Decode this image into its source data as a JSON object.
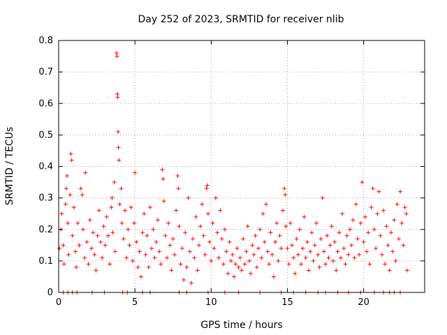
{
  "chart_data": {
    "type": "scatter",
    "title": "Day 252 of 2023, SRMTID for receiver nlib",
    "xlabel": "GPS time / hours",
    "ylabel": "SRMTID / TECUs",
    "xlim": [
      0,
      24
    ],
    "ylim": [
      0,
      0.8
    ],
    "x_ticks": [
      0,
      5,
      10,
      15,
      20
    ],
    "x_tick_labels": [
      "0",
      "5",
      "10",
      "15",
      "20"
    ],
    "y_ticks": [
      0,
      0.1,
      0.2,
      0.3,
      0.4,
      0.5,
      0.6,
      0.7,
      0.8
    ],
    "y_tick_labels": [
      "0",
      "0.1",
      "0.2",
      "0.3",
      "0.4",
      "0.5",
      "0.6",
      "0.7",
      "0.8"
    ],
    "grid": true,
    "marker": "+",
    "series": [
      {
        "name": "SRMTID",
        "color": "#ff0000",
        "points": [
          [
            0.05,
            0.14
          ],
          [
            0.15,
            0.2
          ],
          [
            0.2,
            0.25
          ],
          [
            0.3,
            0.15
          ],
          [
            0.35,
            0.09
          ],
          [
            0.45,
            0.28
          ],
          [
            0.5,
            0.33
          ],
          [
            0.55,
            0.37
          ],
          [
            0.6,
            0.22
          ],
          [
            0.65,
            0.12
          ],
          [
            0.75,
            0.31
          ],
          [
            0.8,
            0.44
          ],
          [
            0.85,
            0.42
          ],
          [
            0.9,
            0.18
          ],
          [
            1.0,
            0.27
          ],
          [
            1.1,
            0.13
          ],
          [
            1.15,
            0.08
          ],
          [
            1.25,
            0.22
          ],
          [
            1.35,
            0.15
          ],
          [
            1.45,
            0.33
          ],
          [
            1.55,
            0.31
          ],
          [
            1.6,
            0.2
          ],
          [
            1.7,
            0.11
          ],
          [
            1.75,
            0.38
          ],
          [
            1.85,
            0.16
          ],
          [
            1.95,
            0.09
          ],
          [
            2.05,
            0.23
          ],
          [
            2.15,
            0.14
          ],
          [
            2.25,
            0.19
          ],
          [
            2.35,
            0.12
          ],
          [
            2.45,
            0.07
          ],
          [
            2.55,
            0.18
          ],
          [
            2.65,
            0.26
          ],
          [
            2.75,
            0.16
          ],
          [
            2.85,
            0.11
          ],
          [
            2.95,
            0.21
          ],
          [
            3.05,
            0.15
          ],
          [
            3.15,
            0.24
          ],
          [
            3.25,
            0.18
          ],
          [
            3.35,
            0.09
          ],
          [
            3.45,
            0.27
          ],
          [
            3.5,
            0.3
          ],
          [
            3.55,
            0.19
          ],
          [
            3.65,
            0.35
          ],
          [
            3.7,
            0.13
          ],
          [
            3.8,
            0.76
          ],
          [
            3.83,
            0.75
          ],
          [
            3.85,
            0.63
          ],
          [
            3.87,
            0.62
          ],
          [
            3.9,
            0.51
          ],
          [
            3.92,
            0.46
          ],
          [
            3.95,
            0.42
          ],
          [
            4.0,
            0.28
          ],
          [
            4.1,
            0.33
          ],
          [
            4.15,
            0.22
          ],
          [
            4.25,
            0.17
          ],
          [
            4.35,
            0.26
          ],
          [
            4.45,
            0.11
          ],
          [
            4.55,
            0.2
          ],
          [
            4.65,
            0.15
          ],
          [
            4.75,
            0.27
          ],
          [
            4.85,
            0.1
          ],
          [
            4.95,
            0.22
          ],
          [
            5.0,
            0.38
          ],
          [
            5.1,
            0.16
          ],
          [
            5.2,
            0.08
          ],
          [
            5.3,
            0.13
          ],
          [
            5.4,
            0.05
          ],
          [
            5.5,
            0.19
          ],
          [
            5.6,
            0.25
          ],
          [
            5.7,
            0.12
          ],
          [
            5.8,
            0.18
          ],
          [
            5.9,
            0.08
          ],
          [
            6.0,
            0.27
          ],
          [
            6.1,
            0.14
          ],
          [
            6.2,
            0.2
          ],
          [
            6.3,
            0.11
          ],
          [
            6.4,
            0.16
          ],
          [
            6.5,
            0.23
          ],
          [
            6.6,
            0.13
          ],
          [
            6.7,
            0.09
          ],
          [
            6.8,
            0.39
          ],
          [
            6.85,
            0.36
          ],
          [
            6.9,
            0.29
          ],
          [
            7.0,
            0.18
          ],
          [
            7.1,
            0.11
          ],
          [
            7.2,
            0.22
          ],
          [
            7.3,
            0.15
          ],
          [
            7.4,
            0.07
          ],
          [
            7.5,
            0.17
          ],
          [
            7.6,
            0.12
          ],
          [
            7.7,
            0.26
          ],
          [
            7.8,
            0.37
          ],
          [
            7.85,
            0.33
          ],
          [
            7.9,
            0.21
          ],
          [
            8.0,
            0.09
          ],
          [
            8.1,
            0.14
          ],
          [
            8.2,
            0.04
          ],
          [
            8.3,
            0.19
          ],
          [
            8.4,
            0.08
          ],
          [
            8.5,
            0.3
          ],
          [
            8.6,
            0.13
          ],
          [
            8.7,
            0.03
          ],
          [
            8.8,
            0.17
          ],
          [
            8.9,
            0.11
          ],
          [
            9.0,
            0.24
          ],
          [
            9.1,
            0.07
          ],
          [
            9.2,
            0.15
          ],
          [
            9.3,
            0.21
          ],
          [
            9.4,
            0.28
          ],
          [
            9.5,
            0.18
          ],
          [
            9.6,
            0.12
          ],
          [
            9.7,
            0.33
          ],
          [
            9.75,
            0.34
          ],
          [
            9.8,
            0.25
          ],
          [
            9.9,
            0.16
          ],
          [
            10.0,
            0.1
          ],
          [
            10.1,
            0.22
          ],
          [
            10.2,
            0.14
          ],
          [
            10.3,
            0.3
          ],
          [
            10.4,
            0.19
          ],
          [
            10.5,
            0.11
          ],
          [
            10.6,
            0.26
          ],
          [
            10.7,
            0.17
          ],
          [
            10.8,
            0.09
          ],
          [
            10.9,
            0.2
          ],
          [
            11.0,
            0.13
          ],
          [
            11.1,
            0.06
          ],
          [
            11.2,
            0.16
          ],
          [
            11.3,
            0.1
          ],
          [
            11.4,
            0.12
          ],
          [
            11.5,
            0.05
          ],
          [
            11.6,
            0.09
          ],
          [
            11.7,
            0.14
          ],
          [
            11.8,
            0.08
          ],
          [
            11.9,
            0.11
          ],
          [
            12.0,
            0.07
          ],
          [
            12.1,
            0.17
          ],
          [
            12.2,
            0.09
          ],
          [
            12.3,
            0.13
          ],
          [
            12.4,
            0.21
          ],
          [
            12.5,
            0.1
          ],
          [
            12.6,
            0.06
          ],
          [
            12.7,
            0.15
          ],
          [
            12.8,
            0.12
          ],
          [
            12.9,
            0.18
          ],
          [
            13.0,
            0.08
          ],
          [
            13.1,
            0.14
          ],
          [
            13.2,
            0.2
          ],
          [
            13.3,
            0.11
          ],
          [
            13.4,
            0.25
          ],
          [
            13.5,
            0.16
          ],
          [
            13.6,
            0.28
          ],
          [
            13.7,
            0.13
          ],
          [
            13.8,
            0.09
          ],
          [
            13.9,
            0.19
          ],
          [
            14.0,
            0.12
          ],
          [
            14.1,
            0.05
          ],
          [
            14.2,
            0.16
          ],
          [
            14.3,
            0.22
          ],
          [
            14.4,
            0.1
          ],
          [
            14.5,
            0.18
          ],
          [
            14.6,
            0.14
          ],
          [
            14.7,
            0.26
          ],
          [
            14.8,
            0.33
          ],
          [
            14.85,
            0.31
          ],
          [
            14.9,
            0.21
          ],
          [
            15.0,
            0.14
          ],
          [
            15.1,
            0.09
          ],
          [
            15.2,
            0.22
          ],
          [
            15.3,
            0.15
          ],
          [
            15.4,
            0.11
          ],
          [
            15.5,
            0.06
          ],
          [
            15.6,
            0.17
          ],
          [
            15.7,
            0.12
          ],
          [
            15.8,
            0.2
          ],
          [
            15.9,
            0.09
          ],
          [
            16.0,
            0.14
          ],
          [
            16.1,
            0.24
          ],
          [
            16.2,
            0.11
          ],
          [
            16.3,
            0.16
          ],
          [
            16.4,
            0.07
          ],
          [
            16.5,
            0.13
          ],
          [
            16.6,
            0.19
          ],
          [
            16.7,
            0.1
          ],
          [
            16.8,
            0.15
          ],
          [
            16.9,
            0.22
          ],
          [
            17.0,
            0.12
          ],
          [
            17.1,
            0.08
          ],
          [
            17.2,
            0.17
          ],
          [
            17.3,
            0.3
          ],
          [
            17.4,
            0.13
          ],
          [
            17.5,
            0.09
          ],
          [
            17.6,
            0.18
          ],
          [
            17.7,
            0.11
          ],
          [
            17.8,
            0.15
          ],
          [
            17.9,
            0.21
          ],
          [
            18.0,
            0.1
          ],
          [
            18.1,
            0.16
          ],
          [
            18.2,
            0.07
          ],
          [
            18.3,
            0.13
          ],
          [
            18.4,
            0.19
          ],
          [
            18.5,
            0.11
          ],
          [
            18.6,
            0.25
          ],
          [
            18.7,
            0.14
          ],
          [
            18.8,
            0.09
          ],
          [
            18.9,
            0.18
          ],
          [
            19.0,
            0.12
          ],
          [
            19.1,
            0.2
          ],
          [
            19.2,
            0.15
          ],
          [
            19.3,
            0.23
          ],
          [
            19.4,
            0.11
          ],
          [
            19.5,
            0.28
          ],
          [
            19.6,
            0.17
          ],
          [
            19.7,
            0.12
          ],
          [
            19.8,
            0.22
          ],
          [
            19.9,
            0.35
          ],
          [
            20.0,
            0.16
          ],
          [
            20.1,
            0.24
          ],
          [
            20.2,
            0.13
          ],
          [
            20.3,
            0.19
          ],
          [
            20.4,
            0.09
          ],
          [
            20.5,
            0.27
          ],
          [
            20.6,
            0.33
          ],
          [
            20.7,
            0.2
          ],
          [
            20.8,
            0.14
          ],
          [
            20.9,
            0.25
          ],
          [
            21.0,
            0.32
          ],
          [
            21.1,
            0.18
          ],
          [
            21.2,
            0.12
          ],
          [
            21.3,
            0.26
          ],
          [
            21.4,
            0.09
          ],
          [
            21.5,
            0.21
          ],
          [
            21.6,
            0.15
          ],
          [
            21.7,
            0.07
          ],
          [
            21.8,
            0.19
          ],
          [
            21.9,
            0.13
          ],
          [
            22.0,
            0.23
          ],
          [
            22.1,
            0.1
          ],
          [
            22.2,
            0.28
          ],
          [
            22.3,
            0.17
          ],
          [
            22.4,
            0.32
          ],
          [
            22.5,
            0.22
          ],
          [
            22.6,
            0.15
          ],
          [
            22.7,
            0.27
          ],
          [
            22.8,
            0.25
          ],
          [
            22.85,
            0.07
          ],
          [
            0.3,
            0.0
          ],
          [
            0.6,
            0.0
          ],
          [
            0.9,
            0.0
          ],
          [
            1.2,
            0.0
          ],
          [
            2.2,
            0.0
          ],
          [
            3.0,
            0.0
          ],
          [
            4.2,
            0.0
          ],
          [
            4.5,
            0.0
          ],
          [
            5.5,
            0.0
          ],
          [
            6.0,
            0.0
          ],
          [
            7.9,
            0.0
          ],
          [
            8.4,
            0.0
          ],
          [
            9.8,
            0.0
          ],
          [
            10.9,
            0.0
          ],
          [
            11.8,
            0.0
          ],
          [
            13.2,
            0.0
          ],
          [
            14.6,
            0.0
          ],
          [
            15.4,
            0.0
          ],
          [
            16.2,
            0.0
          ],
          [
            17.0,
            0.0
          ],
          [
            17.5,
            0.0
          ],
          [
            18.3,
            0.0
          ],
          [
            19.0,
            0.0
          ],
          [
            19.8,
            0.0
          ],
          [
            20.7,
            0.0
          ],
          [
            21.3,
            0.0
          ],
          [
            21.7,
            0.0
          ],
          [
            22.0,
            0.0
          ],
          [
            22.4,
            0.0
          ]
        ]
      }
    ]
  }
}
